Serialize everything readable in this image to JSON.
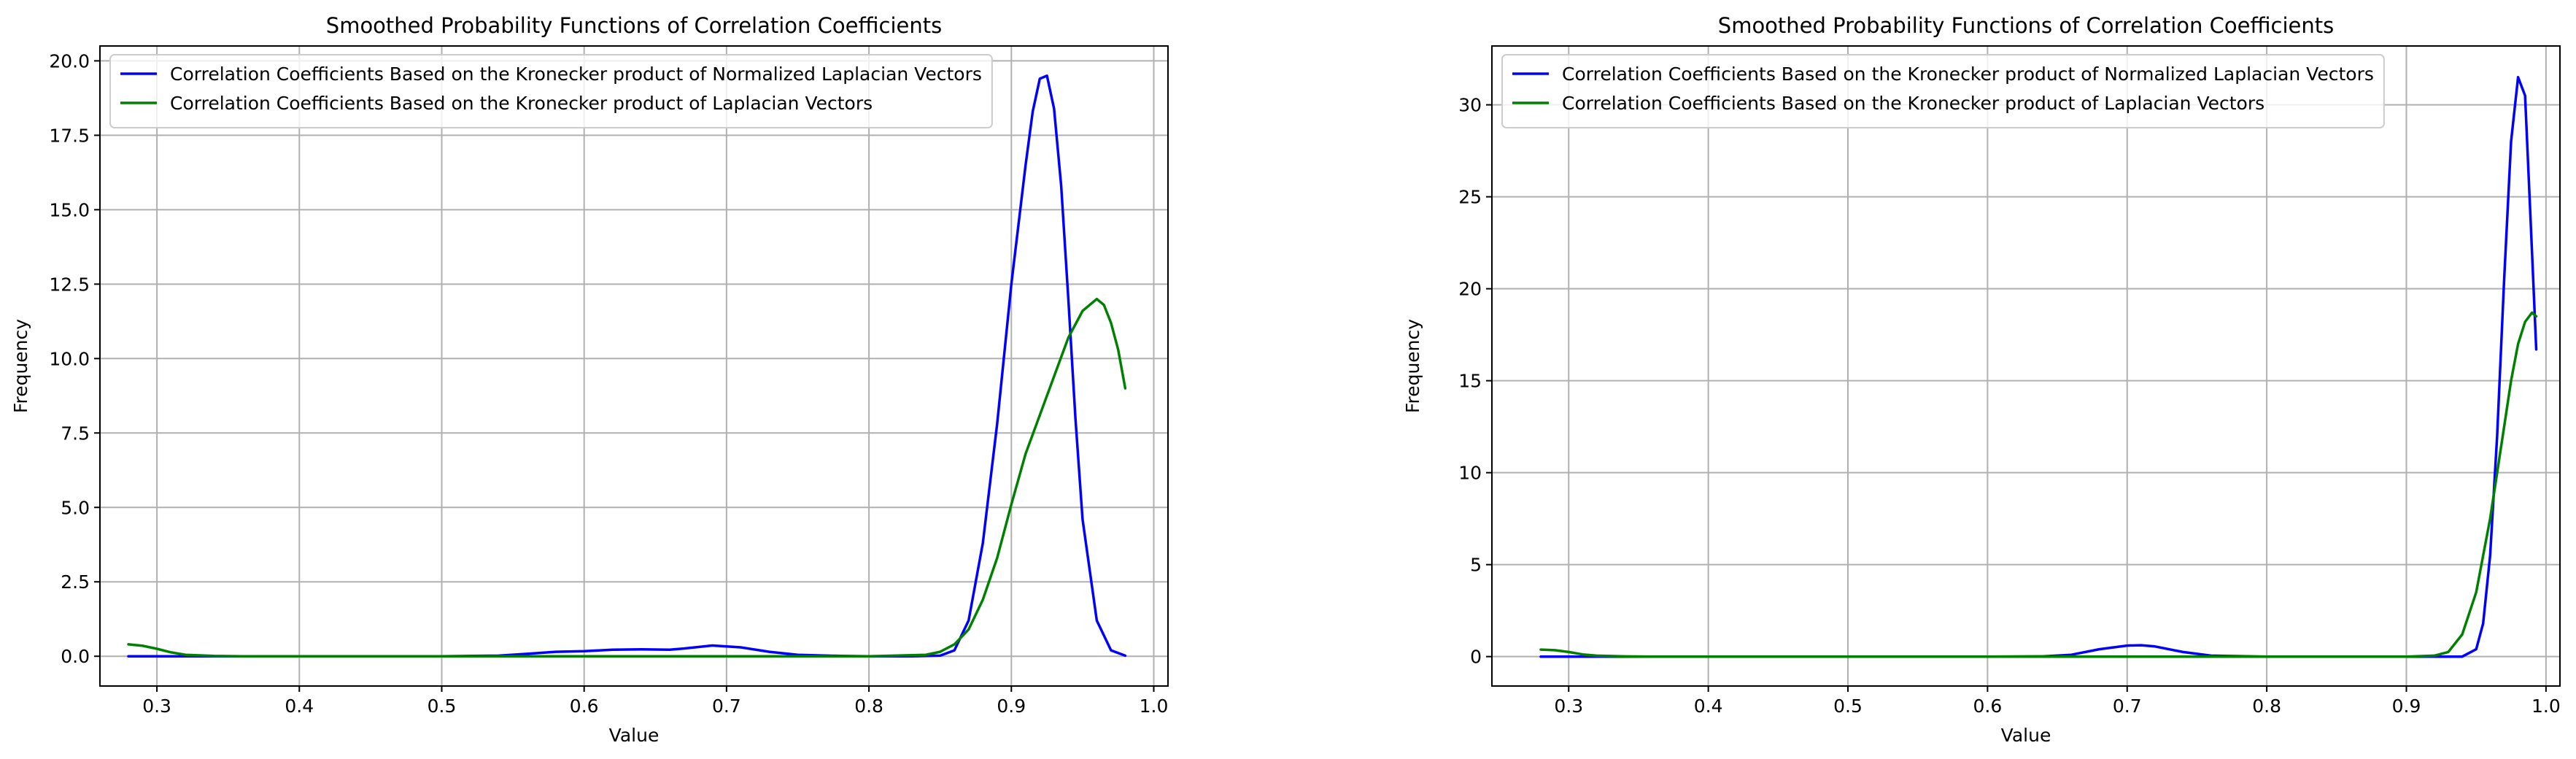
{
  "chart_data": [
    {
      "type": "line",
      "title": "Smoothed Probability Functions of Correlation Coefficients",
      "xlabel": "Value",
      "ylabel": "Frequency",
      "xlim": [
        0.26,
        1.01
      ],
      "ylim": [
        -1.0,
        20.5
      ],
      "xticks": [
        0.3,
        0.4,
        0.5,
        0.6,
        0.7,
        0.8,
        0.9,
        1.0
      ],
      "xtick_labels": [
        "0.3",
        "0.4",
        "0.5",
        "0.6",
        "0.7",
        "0.8",
        "0.9",
        "1.0"
      ],
      "yticks": [
        0,
        2.5,
        5,
        7.5,
        10,
        12.5,
        15,
        17.5,
        20
      ],
      "ytick_labels": [
        "0.0",
        "2.5",
        "5.0",
        "7.5",
        "10.0",
        "12.5",
        "15.0",
        "17.5",
        "20.0"
      ],
      "grid": true,
      "legend_position": "top-left",
      "series": [
        {
          "name": "Correlation Coefficients Based on the Kronecker product of Normalized Laplacian Vectors",
          "color": "#0000ff",
          "x": [
            0.28,
            0.3,
            0.35,
            0.4,
            0.45,
            0.5,
            0.54,
            0.56,
            0.58,
            0.6,
            0.62,
            0.64,
            0.66,
            0.67,
            0.69,
            0.71,
            0.73,
            0.75,
            0.78,
            0.8,
            0.83,
            0.85,
            0.86,
            0.87,
            0.88,
            0.89,
            0.9,
            0.91,
            0.915,
            0.92,
            0.925,
            0.93,
            0.935,
            0.94,
            0.945,
            0.95,
            0.96,
            0.97,
            0.98
          ],
          "y": [
            0,
            0,
            0,
            0,
            0,
            0,
            0.02,
            0.08,
            0.15,
            0.17,
            0.22,
            0.23,
            0.22,
            0.26,
            0.36,
            0.3,
            0.15,
            0.05,
            0.01,
            0,
            0,
            0.02,
            0.2,
            1.2,
            3.8,
            7.8,
            12.5,
            16.5,
            18.3,
            19.4,
            19.5,
            18.4,
            15.8,
            12.0,
            8.0,
            4.6,
            1.2,
            0.2,
            0.02
          ]
        },
        {
          "name": "Correlation Coefficients Based on the Kronecker product of Laplacian Vectors",
          "color": "#008000",
          "x": [
            0.28,
            0.29,
            0.3,
            0.31,
            0.32,
            0.34,
            0.36,
            0.4,
            0.5,
            0.6,
            0.7,
            0.8,
            0.84,
            0.85,
            0.86,
            0.87,
            0.88,
            0.89,
            0.9,
            0.91,
            0.92,
            0.93,
            0.94,
            0.95,
            0.96,
            0.965,
            0.97,
            0.975,
            0.98
          ],
          "y": [
            0.4,
            0.35,
            0.25,
            0.13,
            0.05,
            0.01,
            0,
            0,
            0,
            0,
            0,
            0,
            0.05,
            0.15,
            0.4,
            0.9,
            1.9,
            3.3,
            5.1,
            6.8,
            8.1,
            9.4,
            10.7,
            11.6,
            12.0,
            11.8,
            11.2,
            10.3,
            9.0
          ]
        }
      ]
    },
    {
      "type": "line",
      "title": "Smoothed Probability Functions of Correlation Coefficients",
      "xlabel": "Value",
      "ylabel": "Frequency",
      "xlim": [
        0.245,
        1.01
      ],
      "ylim": [
        -1.6,
        33.2
      ],
      "xticks": [
        0.3,
        0.4,
        0.5,
        0.6,
        0.7,
        0.8,
        0.9,
        1.0
      ],
      "xtick_labels": [
        "0.3",
        "0.4",
        "0.5",
        "0.6",
        "0.7",
        "0.8",
        "0.9",
        "1.0"
      ],
      "yticks": [
        0,
        5,
        10,
        15,
        20,
        25,
        30
      ],
      "ytick_labels": [
        "0",
        "5",
        "10",
        "15",
        "20",
        "25",
        "30"
      ],
      "grid": true,
      "legend_position": "top-left",
      "series": [
        {
          "name": "Correlation Coefficients Based on the Kronecker product of Normalized Laplacian Vectors",
          "color": "#0000ff",
          "x": [
            0.28,
            0.35,
            0.4,
            0.5,
            0.6,
            0.64,
            0.66,
            0.68,
            0.7,
            0.71,
            0.72,
            0.74,
            0.76,
            0.8,
            0.9,
            0.94,
            0.95,
            0.955,
            0.96,
            0.965,
            0.97,
            0.975,
            0.98,
            0.985,
            0.99,
            0.993
          ],
          "y": [
            0,
            0,
            0,
            0,
            0,
            0.01,
            0.1,
            0.4,
            0.6,
            0.62,
            0.55,
            0.25,
            0.05,
            0,
            0,
            0,
            0.4,
            1.8,
            5.5,
            12.0,
            20.5,
            28.0,
            31.5,
            30.5,
            22.0,
            16.7
          ]
        },
        {
          "name": "Correlation Coefficients Based on the Kronecker product of Laplacian Vectors",
          "color": "#008000",
          "x": [
            0.28,
            0.29,
            0.3,
            0.31,
            0.32,
            0.34,
            0.36,
            0.4,
            0.5,
            0.6,
            0.7,
            0.8,
            0.9,
            0.92,
            0.93,
            0.94,
            0.95,
            0.96,
            0.97,
            0.975,
            0.98,
            0.985,
            0.99,
            0.993
          ],
          "y": [
            0.38,
            0.35,
            0.25,
            0.12,
            0.05,
            0.01,
            0,
            0,
            0,
            0,
            0,
            0,
            0,
            0.05,
            0.25,
            1.2,
            3.5,
            7.5,
            12.5,
            15.0,
            17.0,
            18.2,
            18.7,
            18.5
          ]
        }
      ]
    }
  ]
}
